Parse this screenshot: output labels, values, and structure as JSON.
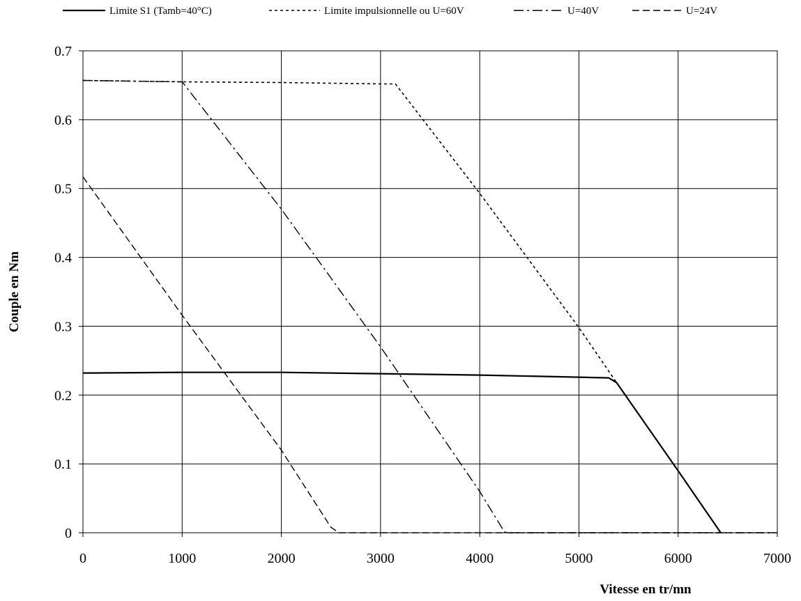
{
  "chart_data": {
    "type": "line",
    "title": "",
    "xlabel": "Vitesse en tr/mn",
    "ylabel": "Couple en Nm",
    "xlim": [
      0,
      7000
    ],
    "ylim": [
      0,
      0.7
    ],
    "x_ticks": [
      0,
      1000,
      2000,
      3000,
      4000,
      5000,
      6000,
      7000
    ],
    "x_tick_labels": [
      "0",
      "1000",
      "2000",
      "3000",
      "4000",
      "5000",
      "6000",
      "7000"
    ],
    "y_ticks": [
      0,
      0.1,
      0.2,
      0.3,
      0.4,
      0.5,
      0.6,
      0.7
    ],
    "y_tick_labels": [
      "0",
      "0.1",
      "0.2",
      "0.3",
      "0.4",
      "0.5",
      "0.6",
      "0.7"
    ],
    "grid": true,
    "legend_position": "top",
    "series": [
      {
        "name": "Limite S1 (Tamb=40°C)",
        "style": "solid",
        "x": [
          0,
          1000,
          2000,
          3000,
          4000,
          5000,
          5300,
          5380,
          6000,
          6430
        ],
        "y": [
          0.232,
          0.233,
          0.233,
          0.231,
          0.229,
          0.226,
          0.225,
          0.218,
          0.09,
          0.0
        ]
      },
      {
        "name": "Limite impulsionnelle ou U=60V",
        "style": "dotted",
        "x": [
          0,
          1000,
          2000,
          3000,
          3150,
          4000,
          5000,
          5380,
          6000,
          6430
        ],
        "y": [
          0.657,
          0.655,
          0.654,
          0.652,
          0.652,
          0.493,
          0.298,
          0.218,
          0.09,
          0.0
        ]
      },
      {
        "name": "U=40V",
        "style": "dashdot",
        "x": [
          0,
          1000,
          2000,
          3000,
          4000,
          4250,
          4300,
          7000
        ],
        "y": [
          0.657,
          0.655,
          0.47,
          0.27,
          0.06,
          0.001,
          0.0,
          0.0
        ]
      },
      {
        "name": "U=24V",
        "style": "dashed",
        "x": [
          0,
          1000,
          2000,
          2500,
          2580,
          7000
        ],
        "y": [
          0.517,
          0.316,
          0.12,
          0.008,
          0.0,
          0.0
        ]
      }
    ]
  }
}
